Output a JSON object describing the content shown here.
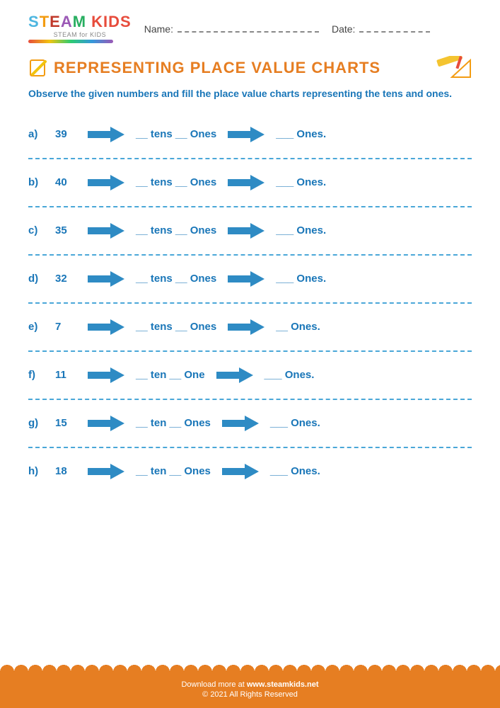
{
  "colors": {
    "primary_text": "#1976b8",
    "accent": "#e67e22",
    "arrow_fill": "#2e8bc4",
    "divider": "#4aa7d8",
    "footer_bg": "#e67e22",
    "background": "#ffffff"
  },
  "logo": {
    "text_main": "STEAM KIDS",
    "text_sub": "STEAM for KIDS",
    "letter_colors": [
      "#4db6e0",
      "#f39c12",
      "#c0392b",
      "#9b59b6",
      "#27ae60",
      "#e74c3c"
    ]
  },
  "header": {
    "name_label": "Name:",
    "date_label": "Date:"
  },
  "title": "REPRESENTING PLACE VALUE CHARTS",
  "instructions": "Observe the given numbers and fill the place value charts representing the tens and ones.",
  "questions": [
    {
      "label": "a)",
      "number": "39",
      "mid": "__ tens __ Ones",
      "right": "___ Ones."
    },
    {
      "label": "b)",
      "number": "40",
      "mid": "__ tens __ Ones",
      "right": "___ Ones."
    },
    {
      "label": "c)",
      "number": "35",
      "mid": "__ tens __ Ones",
      "right": "___ Ones."
    },
    {
      "label": "d)",
      "number": "32",
      "mid": "__ tens __ Ones",
      "right": "___ Ones."
    },
    {
      "label": "e)",
      "number": "7",
      "mid": "__ tens __ Ones",
      "right": "__ Ones."
    },
    {
      "label": "f)",
      "number": "11",
      "mid": "__ ten __ One",
      "right": "___ Ones."
    },
    {
      "label": "g)",
      "number": "15",
      "mid": "__ ten __ Ones",
      "right": "___ Ones."
    },
    {
      "label": "h)",
      "number": "18",
      "mid": "__ ten __ Ones",
      "right": "___ Ones."
    }
  ],
  "arrow": {
    "width": 52,
    "height": 22,
    "fill": "#2e8bc4"
  },
  "footer": {
    "line1_prefix": "Download more at ",
    "line1_url": "www.steamkids.net",
    "line2": "© 2021 All Rights Reserved"
  },
  "typography": {
    "title_fontsize": 22,
    "instruction_fontsize": 14,
    "row_fontsize": 15,
    "footer_fontsize": 11
  }
}
